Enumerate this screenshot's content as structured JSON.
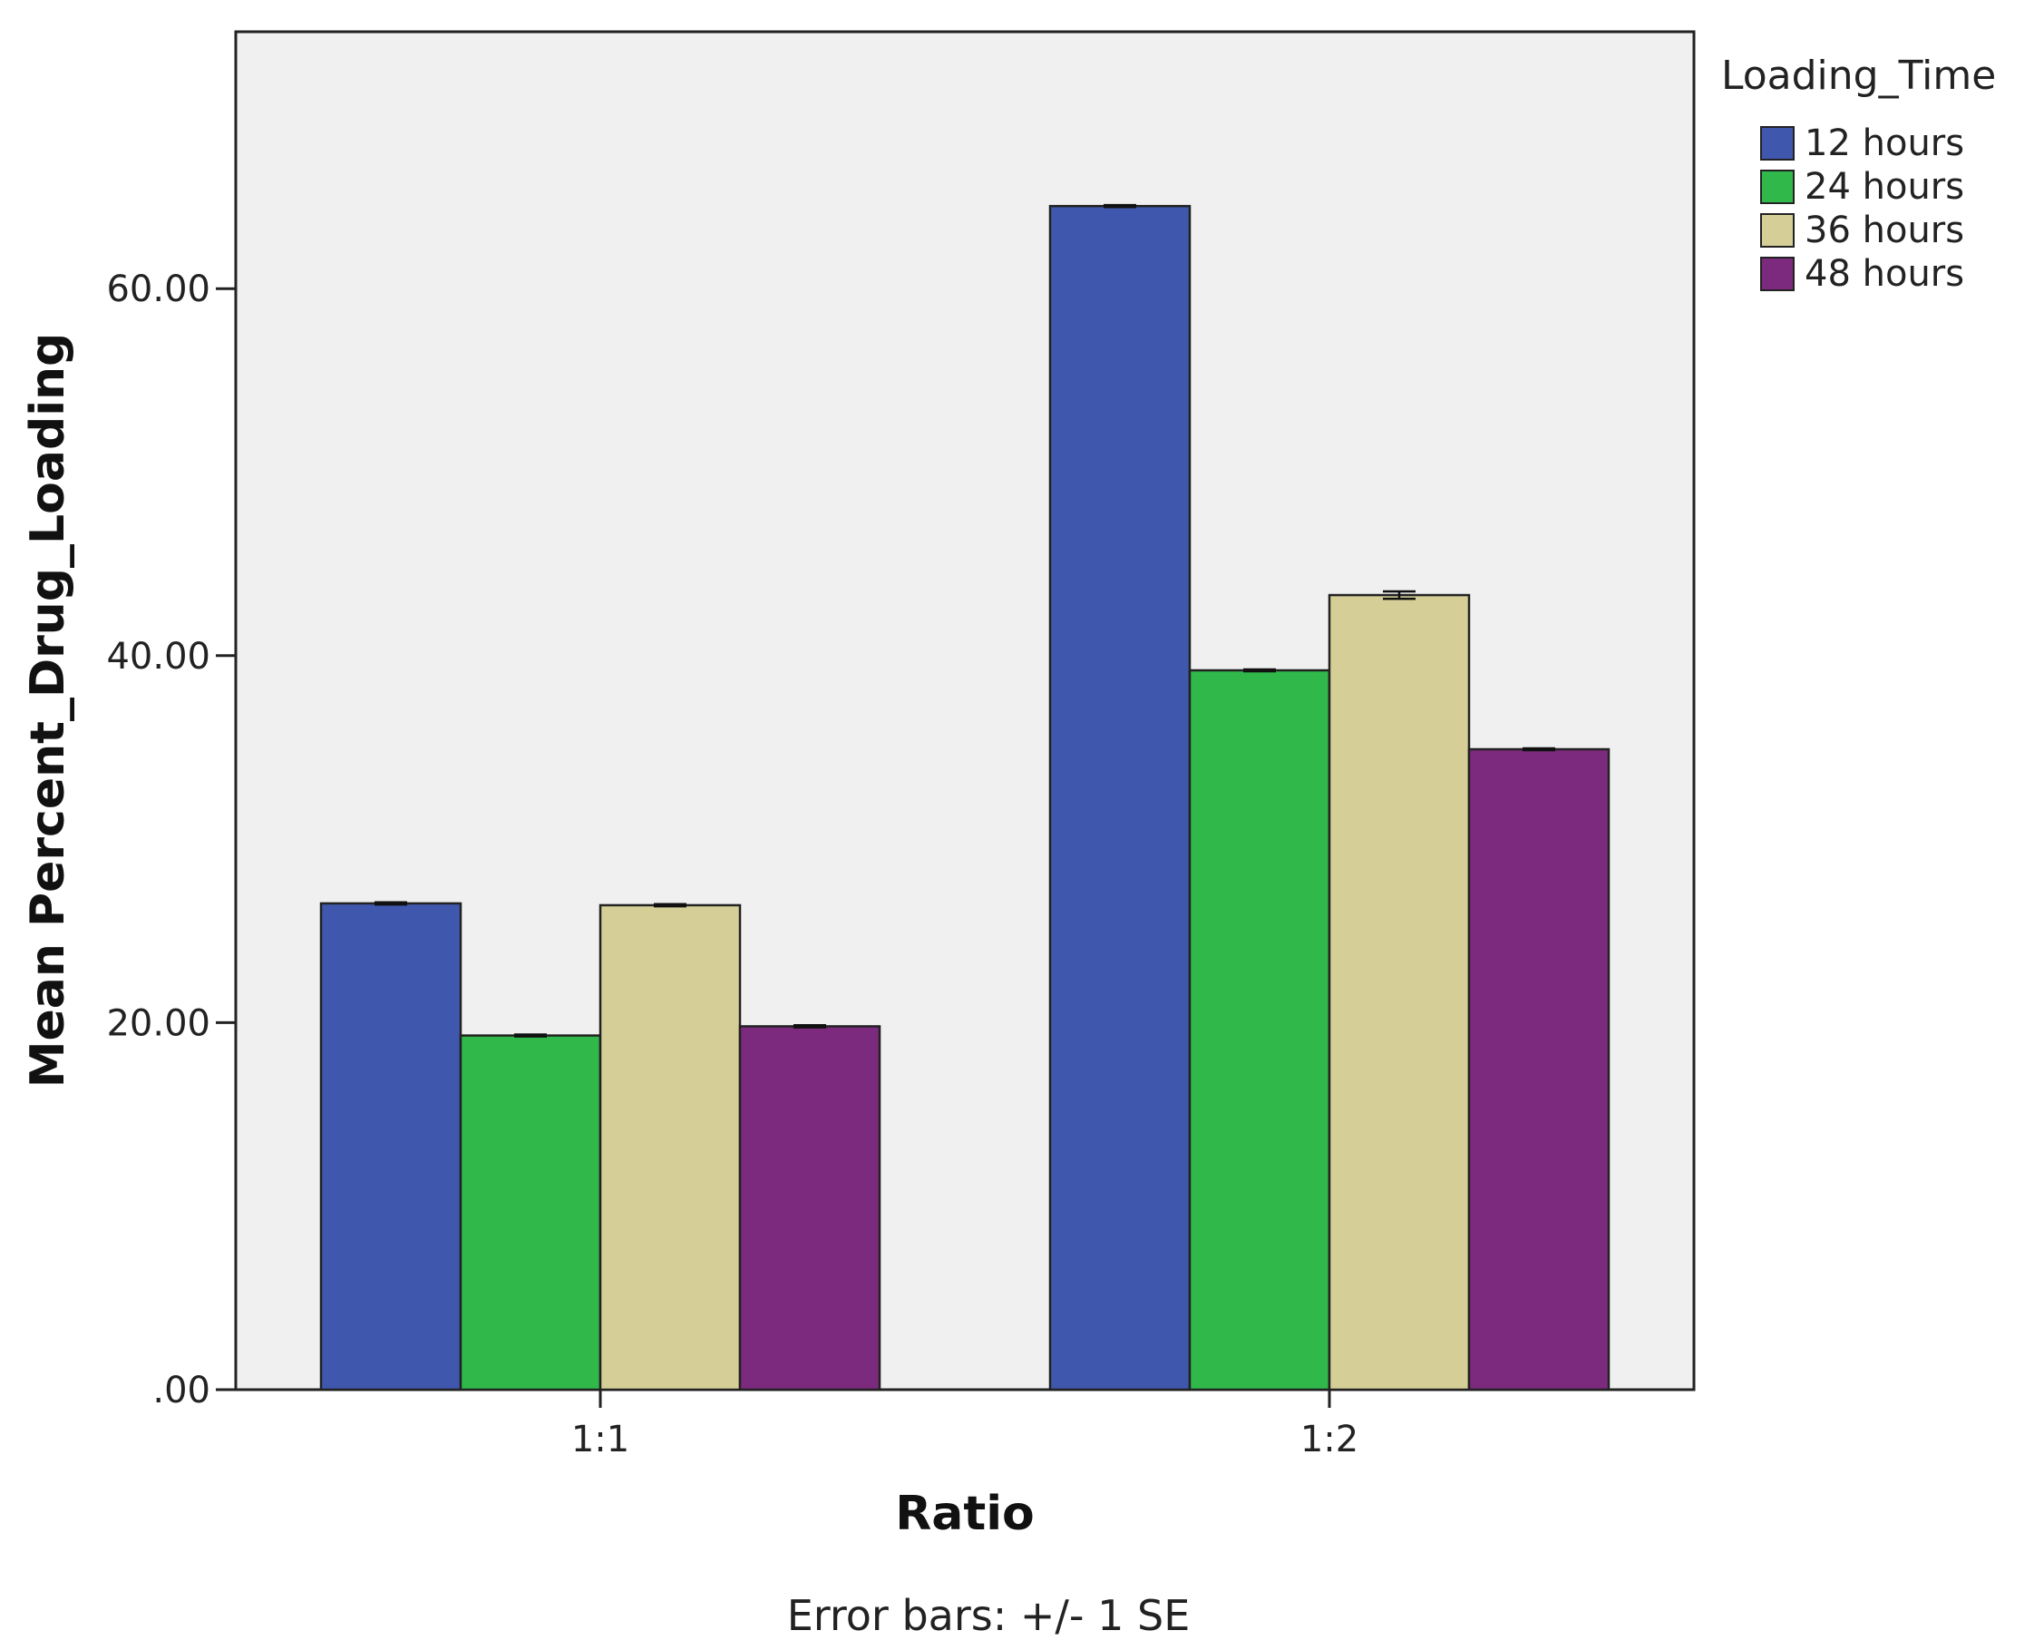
{
  "chart_data": {
    "type": "bar",
    "xlabel": "Ratio",
    "ylabel": "Mean Percent_Drug_Loading",
    "categories": [
      "1:1",
      "1:2"
    ],
    "ylim": [
      0,
      74
    ],
    "yticks": [
      0,
      20,
      40,
      60
    ],
    "ytick_labels": [
      ".00",
      "20.00",
      "40.00",
      "60.00"
    ],
    "legend": {
      "title": "Loading_Time",
      "placement": "right"
    },
    "series": [
      {
        "name": "12 hours",
        "color": "#3F58AD",
        "values": [
          26.5,
          64.5
        ],
        "se": [
          0.06,
          0.05
        ]
      },
      {
        "name": "24 hours",
        "color": "#30B94A",
        "values": [
          19.3,
          39.2
        ],
        "se": [
          0.05,
          0.05
        ]
      },
      {
        "name": "36 hours",
        "color": "#D5CF97",
        "values": [
          26.4,
          43.3
        ],
        "se": [
          0.06,
          0.2
        ]
      },
      {
        "name": "48 hours",
        "color": "#7C2A7D",
        "values": [
          19.8,
          34.9
        ],
        "se": [
          0.06,
          0.05
        ]
      }
    ],
    "footnote": "Error bars: +/- 1 SE",
    "grid": false,
    "plot_background": "#F0F0F0"
  }
}
